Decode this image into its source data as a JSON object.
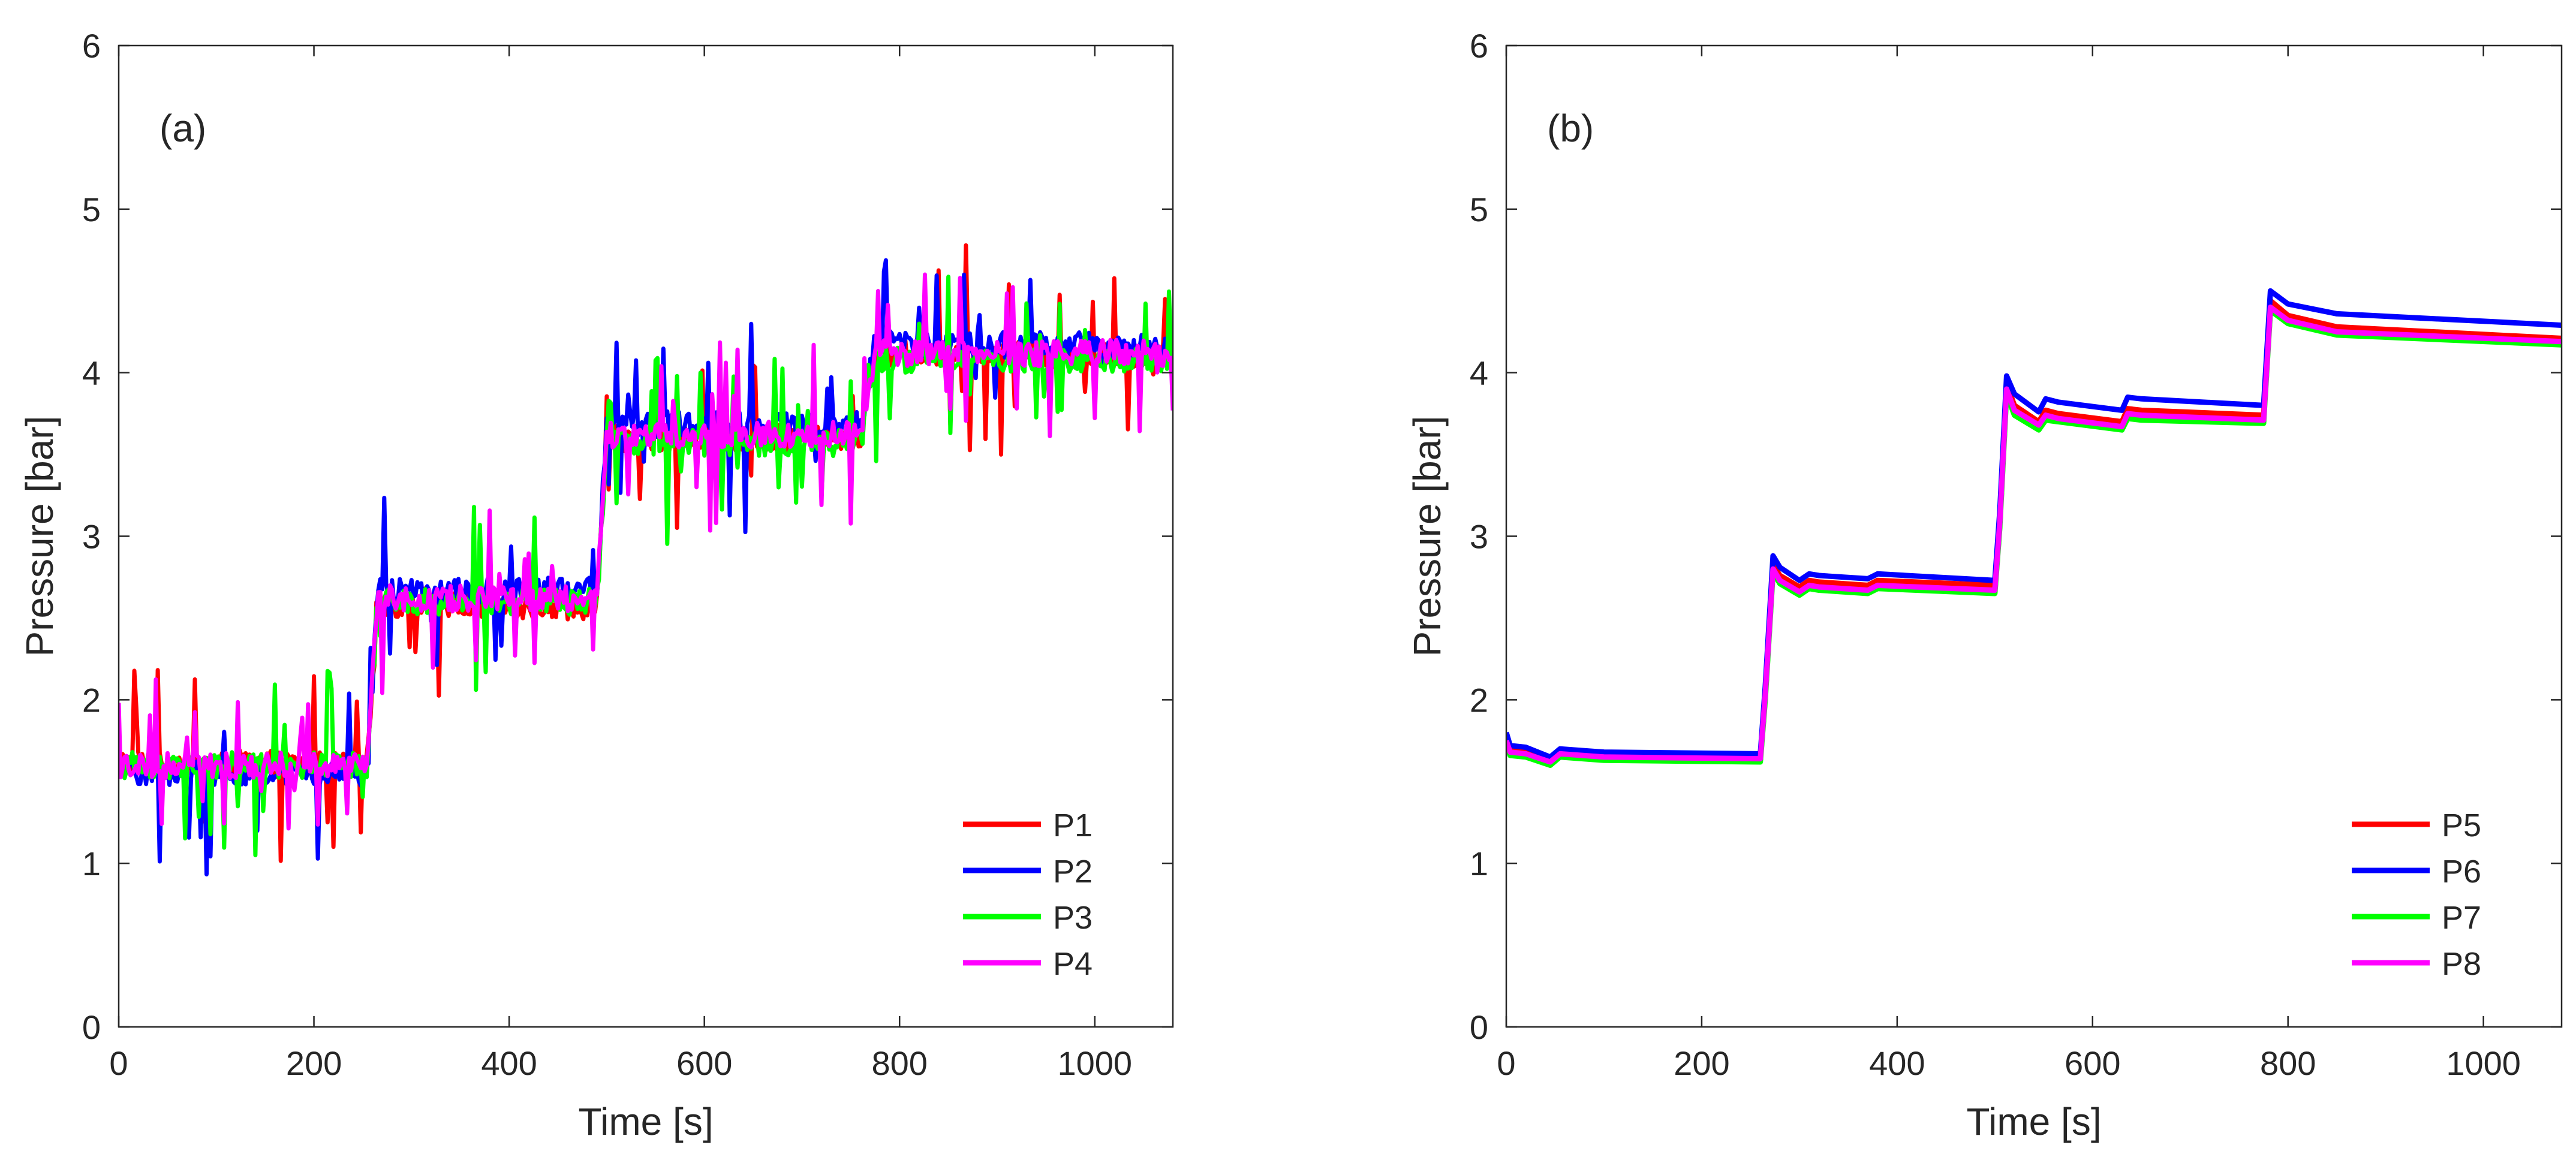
{
  "figure": {
    "panels": [
      "(a)",
      "(b)"
    ]
  },
  "chart_data": [
    {
      "type": "line",
      "panel_label": "(a)",
      "title": "",
      "xlabel": "Time [s]",
      "ylabel": "Pressure [bar]",
      "xlim": [
        0,
        1080
      ],
      "ylim": [
        0,
        6
      ],
      "xticks": [
        0,
        200,
        400,
        600,
        800,
        1000
      ],
      "yticks": [
        0,
        1,
        2,
        3,
        4,
        5,
        6
      ],
      "legend_position": "bottom-right",
      "noise": "high",
      "series": [
        {
          "name": "P1",
          "color": "#ff0000",
          "x": [
            0,
            255,
            265,
            490,
            500,
            760,
            775,
            1080
          ],
          "y": [
            1.62,
            1.6,
            2.58,
            2.57,
            3.6,
            3.6,
            4.12,
            4.1
          ]
        },
        {
          "name": "P2",
          "color": "#0000ff",
          "x": [
            0,
            255,
            265,
            490,
            500,
            760,
            775,
            1080
          ],
          "y": [
            1.56,
            1.55,
            2.66,
            2.67,
            3.68,
            3.68,
            4.18,
            4.16
          ]
        },
        {
          "name": "P3",
          "color": "#00ff00",
          "x": [
            0,
            255,
            265,
            490,
            500,
            760,
            775,
            1080
          ],
          "y": [
            1.6,
            1.6,
            2.6,
            2.6,
            3.57,
            3.57,
            4.08,
            4.08
          ]
        },
        {
          "name": "P4",
          "color": "#ff00ff",
          "x": [
            0,
            255,
            265,
            490,
            500,
            760,
            775,
            1080
          ],
          "y": [
            1.6,
            1.6,
            2.62,
            2.62,
            3.62,
            3.62,
            4.12,
            4.12
          ]
        }
      ]
    },
    {
      "type": "line",
      "panel_label": "(b)",
      "title": "",
      "xlabel": "Time [s]",
      "ylabel": "Pressure [bar]",
      "xlim": [
        0,
        1080
      ],
      "ylim": [
        0,
        6
      ],
      "xticks": [
        0,
        200,
        400,
        600,
        800,
        1000
      ],
      "yticks": [
        0,
        1,
        2,
        3,
        4,
        5,
        6
      ],
      "legend_position": "bottom-right",
      "noise": "none",
      "series": [
        {
          "name": "P5",
          "color": "#ff0000",
          "x": [
            0,
            4,
            20,
            45,
            55,
            100,
            260,
            265,
            273,
            280,
            300,
            310,
            320,
            370,
            380,
            500,
            505,
            512,
            520,
            545,
            552,
            565,
            630,
            636,
            650,
            775,
            782,
            800,
            850,
            1080
          ],
          "y": [
            1.78,
            1.7,
            1.69,
            1.63,
            1.68,
            1.66,
            1.65,
            2.05,
            2.83,
            2.76,
            2.69,
            2.73,
            2.72,
            2.7,
            2.73,
            2.7,
            3.1,
            3.93,
            3.8,
            3.7,
            3.77,
            3.75,
            3.7,
            3.78,
            3.77,
            3.74,
            4.44,
            4.35,
            4.28,
            4.21
          ]
        },
        {
          "name": "P6",
          "color": "#0000ff",
          "x": [
            0,
            4,
            20,
            45,
            55,
            100,
            260,
            265,
            273,
            280,
            300,
            310,
            320,
            370,
            380,
            500,
            505,
            512,
            520,
            545,
            552,
            565,
            630,
            636,
            650,
            775,
            782,
            800,
            850,
            1080
          ],
          "y": [
            1.8,
            1.72,
            1.71,
            1.65,
            1.7,
            1.68,
            1.67,
            2.08,
            2.88,
            2.81,
            2.73,
            2.77,
            2.76,
            2.74,
            2.77,
            2.73,
            3.15,
            3.98,
            3.87,
            3.76,
            3.84,
            3.82,
            3.77,
            3.85,
            3.84,
            3.8,
            4.5,
            4.42,
            4.36,
            4.29
          ]
        },
        {
          "name": "P7",
          "color": "#00ff00",
          "x": [
            0,
            4,
            20,
            45,
            55,
            100,
            260,
            265,
            273,
            280,
            300,
            310,
            320,
            370,
            380,
            500,
            505,
            512,
            520,
            545,
            552,
            565,
            630,
            636,
            650,
            775,
            782,
            800,
            850,
            1080
          ],
          "y": [
            1.72,
            1.66,
            1.65,
            1.6,
            1.65,
            1.63,
            1.62,
            2.0,
            2.78,
            2.71,
            2.64,
            2.68,
            2.67,
            2.65,
            2.68,
            2.65,
            3.05,
            3.87,
            3.74,
            3.65,
            3.71,
            3.7,
            3.65,
            3.72,
            3.71,
            3.69,
            4.38,
            4.3,
            4.23,
            4.17
          ]
        },
        {
          "name": "P8",
          "color": "#ff00ff",
          "x": [
            0,
            4,
            20,
            45,
            55,
            100,
            260,
            265,
            273,
            280,
            300,
            310,
            320,
            370,
            380,
            500,
            505,
            512,
            520,
            545,
            552,
            565,
            630,
            636,
            650,
            775,
            782,
            800,
            850,
            1080
          ],
          "y": [
            1.75,
            1.68,
            1.67,
            1.62,
            1.67,
            1.65,
            1.64,
            2.03,
            2.8,
            2.73,
            2.66,
            2.7,
            2.69,
            2.67,
            2.7,
            2.67,
            3.08,
            3.9,
            3.77,
            3.68,
            3.74,
            3.72,
            3.67,
            3.75,
            3.74,
            3.71,
            4.4,
            4.32,
            4.25,
            4.19
          ]
        }
      ]
    }
  ]
}
